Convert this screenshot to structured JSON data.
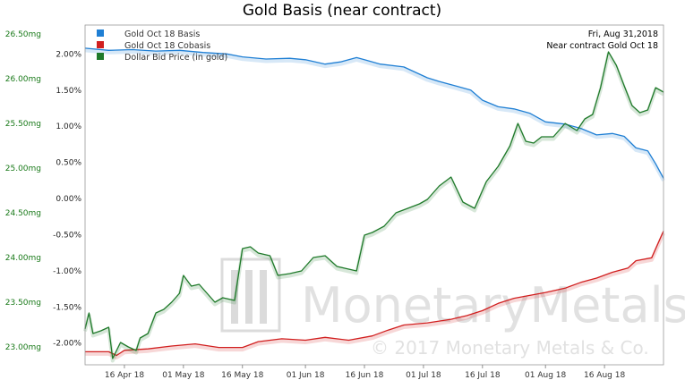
{
  "chart_data": {
    "type": "line",
    "title": "Gold Basis (near contract)",
    "annotation": {
      "date": "Fri, Aug 31,2018",
      "contract": "Near contract Gold Oct 18"
    },
    "watermark": {
      "brand": "MonetaryMetals",
      "copyright": "© 2017 Monetary Metals & Co."
    },
    "legend": {
      "position": "top-left"
    },
    "grid": false,
    "x": {
      "range": [
        "2018-04-06",
        "2018-08-31"
      ],
      "ticks": [
        {
          "label": "16 Apr 18",
          "date": "2018-04-16"
        },
        {
          "label": "01 May 18",
          "date": "2018-05-01"
        },
        {
          "label": "16 May 18",
          "date": "2018-05-16"
        },
        {
          "label": "01 Jun 18",
          "date": "2018-06-01"
        },
        {
          "label": "16 Jun 18",
          "date": "2018-06-16"
        },
        {
          "label": "01 Jul 18",
          "date": "2018-07-01"
        },
        {
          "label": "16 Jul 18",
          "date": "2018-07-16"
        },
        {
          "label": "01 Aug 18",
          "date": "2018-08-01"
        },
        {
          "label": "16 Aug 18",
          "date": "2018-08-16"
        }
      ]
    },
    "y_left": {
      "unit": "mg",
      "range": [
        22.8,
        26.6
      ],
      "ticks": [
        "23.00mg",
        "23.50mg",
        "24.00mg",
        "24.50mg",
        "25.00mg",
        "25.50mg",
        "26.00mg",
        "26.50mg"
      ],
      "values": [
        23.0,
        23.5,
        24.0,
        24.5,
        25.0,
        25.5,
        26.0,
        26.5
      ],
      "color": "#1a7a1a"
    },
    "y_right": {
      "unit": "%",
      "range": [
        -2.3,
        2.4
      ],
      "ticks": [
        "-2.00%",
        "-1.50%",
        "-1.00%",
        "-0.50%",
        "0.00%",
        "0.50%",
        "1.00%",
        "1.50%",
        "2.00%"
      ],
      "values": [
        -2.0,
        -1.5,
        -1.0,
        -0.5,
        0.0,
        0.5,
        1.0,
        1.5,
        2.0
      ],
      "color": "#222222"
    },
    "series": [
      {
        "name": "Gold Oct 18 Basis",
        "color": "#1f7fd4",
        "axis": "right",
        "points": [
          [
            "2018-04-06",
            2.08
          ],
          [
            "2018-04-12",
            2.05
          ],
          [
            "2018-04-18",
            2.06
          ],
          [
            "2018-04-24",
            2.04
          ],
          [
            "2018-04-30",
            2.05
          ],
          [
            "2018-05-06",
            2.02
          ],
          [
            "2018-05-12",
            2.0
          ],
          [
            "2018-05-16",
            1.96
          ],
          [
            "2018-05-22",
            1.93
          ],
          [
            "2018-05-28",
            1.94
          ],
          [
            "2018-06-01",
            1.92
          ],
          [
            "2018-06-06",
            1.86
          ],
          [
            "2018-06-10",
            1.89
          ],
          [
            "2018-06-14",
            1.95
          ],
          [
            "2018-06-16",
            1.92
          ],
          [
            "2018-06-20",
            1.86
          ],
          [
            "2018-06-26",
            1.82
          ],
          [
            "2018-07-02",
            1.67
          ],
          [
            "2018-07-05",
            1.62
          ],
          [
            "2018-07-09",
            1.56
          ],
          [
            "2018-07-13",
            1.5
          ],
          [
            "2018-07-16",
            1.36
          ],
          [
            "2018-07-20",
            1.27
          ],
          [
            "2018-07-24",
            1.24
          ],
          [
            "2018-07-28",
            1.18
          ],
          [
            "2018-08-01",
            1.06
          ],
          [
            "2018-08-06",
            1.03
          ],
          [
            "2018-08-10",
            0.97
          ],
          [
            "2018-08-14",
            0.88
          ],
          [
            "2018-08-18",
            0.9
          ],
          [
            "2018-08-21",
            0.86
          ],
          [
            "2018-08-24",
            0.7
          ],
          [
            "2018-08-27",
            0.66
          ],
          [
            "2018-08-29",
            0.48
          ],
          [
            "2018-08-31",
            0.28
          ]
        ]
      },
      {
        "name": "Gold Oct 18 Cobasis",
        "color": "#d11f1f",
        "axis": "right",
        "points": [
          [
            "2018-04-06",
            -2.12
          ],
          [
            "2018-04-12",
            -2.12
          ],
          [
            "2018-04-14",
            -2.17
          ],
          [
            "2018-04-16",
            -2.1
          ],
          [
            "2018-04-22",
            -2.08
          ],
          [
            "2018-04-28",
            -2.04
          ],
          [
            "2018-05-04",
            -2.01
          ],
          [
            "2018-05-10",
            -2.06
          ],
          [
            "2018-05-16",
            -2.06
          ],
          [
            "2018-05-20",
            -1.98
          ],
          [
            "2018-05-26",
            -1.94
          ],
          [
            "2018-06-01",
            -1.96
          ],
          [
            "2018-06-06",
            -1.92
          ],
          [
            "2018-06-12",
            -1.96
          ],
          [
            "2018-06-18",
            -1.9
          ],
          [
            "2018-06-22",
            -1.82
          ],
          [
            "2018-06-26",
            -1.75
          ],
          [
            "2018-07-02",
            -1.72
          ],
          [
            "2018-07-08",
            -1.67
          ],
          [
            "2018-07-12",
            -1.62
          ],
          [
            "2018-07-16",
            -1.55
          ],
          [
            "2018-07-20",
            -1.45
          ],
          [
            "2018-07-24",
            -1.38
          ],
          [
            "2018-07-28",
            -1.34
          ],
          [
            "2018-08-01",
            -1.3
          ],
          [
            "2018-08-06",
            -1.24
          ],
          [
            "2018-08-10",
            -1.16
          ],
          [
            "2018-08-14",
            -1.1
          ],
          [
            "2018-08-18",
            -1.02
          ],
          [
            "2018-08-22",
            -0.96
          ],
          [
            "2018-08-24",
            -0.86
          ],
          [
            "2018-08-28",
            -0.82
          ],
          [
            "2018-08-31",
            -0.45
          ]
        ]
      },
      {
        "name": "Dollar Bid Price (in gold)",
        "color": "#1f7a2a",
        "axis": "left",
        "points": [
          [
            "2018-04-06",
            23.2
          ],
          [
            "2018-04-07",
            23.38
          ],
          [
            "2018-04-08",
            23.15
          ],
          [
            "2018-04-10",
            23.18
          ],
          [
            "2018-04-12",
            23.22
          ],
          [
            "2018-04-13",
            22.87
          ],
          [
            "2018-04-15",
            23.05
          ],
          [
            "2018-04-17",
            23.0
          ],
          [
            "2018-04-19",
            22.96
          ],
          [
            "2018-04-20",
            23.1
          ],
          [
            "2018-04-22",
            23.15
          ],
          [
            "2018-04-24",
            23.38
          ],
          [
            "2018-04-26",
            23.42
          ],
          [
            "2018-04-28",
            23.5
          ],
          [
            "2018-04-30",
            23.6
          ],
          [
            "2018-05-01",
            23.8
          ],
          [
            "2018-05-03",
            23.68
          ],
          [
            "2018-05-05",
            23.7
          ],
          [
            "2018-05-07",
            23.6
          ],
          [
            "2018-05-09",
            23.5
          ],
          [
            "2018-05-11",
            23.55
          ],
          [
            "2018-05-14",
            23.52
          ],
          [
            "2018-05-16",
            24.1
          ],
          [
            "2018-05-18",
            24.12
          ],
          [
            "2018-05-20",
            24.05
          ],
          [
            "2018-05-23",
            24.02
          ],
          [
            "2018-05-25",
            23.8
          ],
          [
            "2018-05-28",
            23.82
          ],
          [
            "2018-05-31",
            23.85
          ],
          [
            "2018-06-03",
            24.0
          ],
          [
            "2018-06-06",
            24.02
          ],
          [
            "2018-06-09",
            23.9
          ],
          [
            "2018-06-11",
            23.88
          ],
          [
            "2018-06-14",
            23.85
          ],
          [
            "2018-06-16",
            24.25
          ],
          [
            "2018-06-18",
            24.28
          ],
          [
            "2018-06-21",
            24.35
          ],
          [
            "2018-06-24",
            24.5
          ],
          [
            "2018-06-27",
            24.55
          ],
          [
            "2018-06-30",
            24.6
          ],
          [
            "2018-07-02",
            24.65
          ],
          [
            "2018-07-05",
            24.8
          ],
          [
            "2018-07-08",
            24.9
          ],
          [
            "2018-07-11",
            24.62
          ],
          [
            "2018-07-14",
            24.55
          ],
          [
            "2018-07-17",
            24.85
          ],
          [
            "2018-07-20",
            25.02
          ],
          [
            "2018-07-23",
            25.25
          ],
          [
            "2018-07-25",
            25.5
          ],
          [
            "2018-07-27",
            25.3
          ],
          [
            "2018-07-29",
            25.28
          ],
          [
            "2018-07-31",
            25.35
          ],
          [
            "2018-08-03",
            25.35
          ],
          [
            "2018-08-06",
            25.5
          ],
          [
            "2018-08-09",
            25.42
          ],
          [
            "2018-08-11",
            25.55
          ],
          [
            "2018-08-13",
            25.6
          ],
          [
            "2018-08-15",
            25.9
          ],
          [
            "2018-08-17",
            26.3
          ],
          [
            "2018-08-19",
            26.15
          ],
          [
            "2018-08-21",
            25.92
          ],
          [
            "2018-08-23",
            25.7
          ],
          [
            "2018-08-25",
            25.62
          ],
          [
            "2018-08-27",
            25.65
          ],
          [
            "2018-08-29",
            25.9
          ],
          [
            "2018-08-31",
            25.85
          ]
        ]
      }
    ]
  }
}
